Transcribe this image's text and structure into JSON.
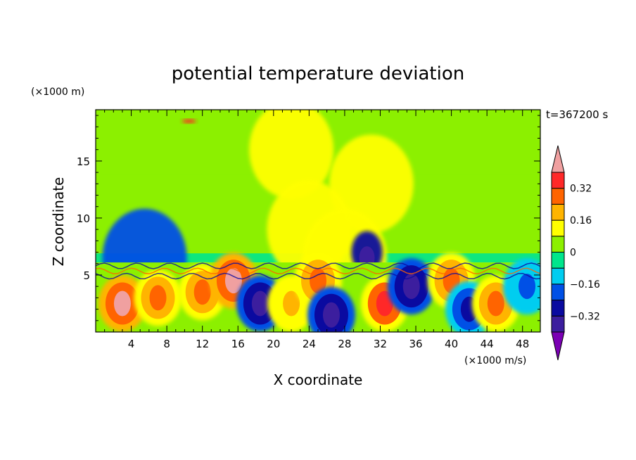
{
  "chart_data": {
    "type": "heatmap",
    "title": "potential temperature deviation",
    "xlabel": "X coordinate",
    "ylabel": "Z coordinate",
    "x_unit": "(×1000 m/s)",
    "y_unit": "(×1000 m)",
    "time_label": "t=367200 s",
    "xlim": [
      0,
      50
    ],
    "ylim": [
      0,
      19.5
    ],
    "x_ticks": [
      4,
      8,
      12,
      16,
      20,
      24,
      28,
      32,
      36,
      40,
      44,
      48
    ],
    "y_ticks": [
      5,
      10,
      15
    ],
    "colorbar": {
      "levels": [
        -0.4,
        -0.32,
        -0.24,
        -0.16,
        -0.08,
        0,
        0.08,
        0.16,
        0.24,
        0.32,
        0.4
      ],
      "labels": [
        "-0.32",
        "-0.16",
        "0",
        "0.16",
        "0.32"
      ],
      "label_values": [
        -0.32,
        -0.16,
        0,
        0.16,
        0.32
      ],
      "colors": [
        "#7b00b4",
        "#3c1e9e",
        "#0a0aa0",
        "#0050e6",
        "#00cdf0",
        "#00e68c",
        "#8cf000",
        "#ffff00",
        "#ffb400",
        "#ff6400",
        "#ff2828",
        "#f0a0a0"
      ],
      "extend": "both"
    },
    "upper_layer_features": [
      {
        "x": 22,
        "z": 16,
        "value": 0.1
      },
      {
        "x": 31,
        "z": 13,
        "value": 0.1
      },
      {
        "x": 24,
        "z": 9,
        "value": 0.12
      },
      {
        "x": 28,
        "z": 6.5,
        "value": 0.1
      },
      {
        "x": 30.5,
        "z": 7,
        "value": -0.3
      },
      {
        "x": 5.5,
        "z": 6.5,
        "value": -0.2
      },
      {
        "x": 10.5,
        "z": 18.5,
        "value": 0.32
      }
    ],
    "lower_layer_features": [
      {
        "x": 3,
        "z": 2.5,
        "value": 0.4
      },
      {
        "x": 7,
        "z": 3,
        "value": 0.25
      },
      {
        "x": 12,
        "z": 3.5,
        "value": 0.3
      },
      {
        "x": 15.5,
        "z": 4.5,
        "value": 0.4
      },
      {
        "x": 18.5,
        "z": 2.5,
        "value": -0.36
      },
      {
        "x": 22,
        "z": 2.5,
        "value": 0.2
      },
      {
        "x": 25,
        "z": 4.5,
        "value": 0.3
      },
      {
        "x": 26.5,
        "z": 1.5,
        "value": -0.36
      },
      {
        "x": 32.5,
        "z": 2.5,
        "value": 0.35
      },
      {
        "x": 35.5,
        "z": 4,
        "value": -0.36
      },
      {
        "x": 40,
        "z": 4.5,
        "value": 0.3
      },
      {
        "x": 42,
        "z": 2,
        "value": -0.3
      },
      {
        "x": 45,
        "z": 2.5,
        "value": 0.25
      },
      {
        "x": 48.5,
        "z": 4,
        "value": -0.2
      }
    ]
  }
}
